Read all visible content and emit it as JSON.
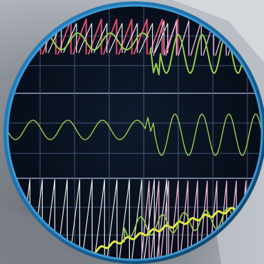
{
  "photo": {
    "subject": "oscilloscope-waveform-display",
    "colors": {
      "background_gray": "#8a9096",
      "bezel_blue": "#1f6fa8",
      "bezel_dark": "#0c3a5c",
      "screen": "#0b1220",
      "grid": "#6f88b8",
      "grid_bright": "#b9c8ea",
      "trace_red": "#e0506a",
      "trace_white": "#f0f0f0",
      "trace_green": "#9ad44a",
      "trace_yellow": "#e6ea48",
      "trace_pink": "#e8b6d8"
    }
  }
}
